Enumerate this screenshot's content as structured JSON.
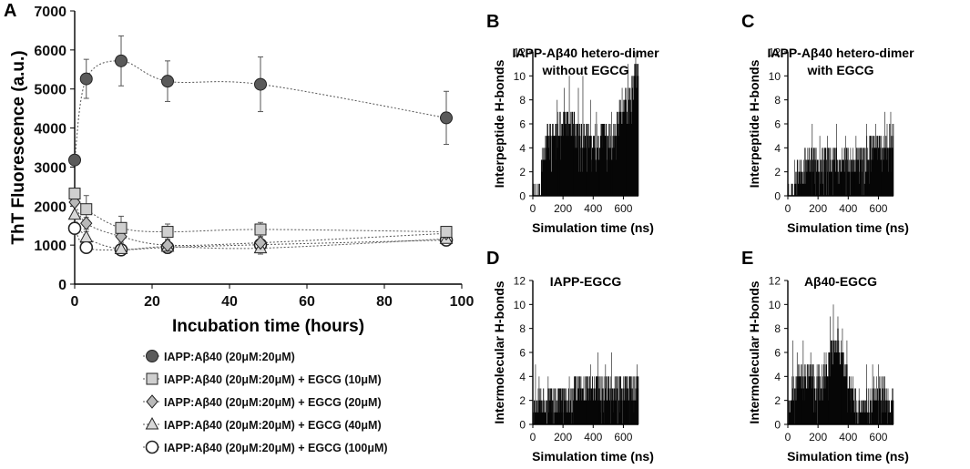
{
  "chart_data": [
    {
      "panel": "A",
      "type": "scatter",
      "title": "",
      "xlabel": "Incubation time (hours)",
      "ylabel": "ThT Fluorescence (a.u.)",
      "xlim": [
        0,
        100
      ],
      "ylim": [
        0,
        7000
      ],
      "xticks": [
        "0",
        "20",
        "40",
        "60",
        "80",
        "100"
      ],
      "yticks": [
        "0",
        "1000",
        "2000",
        "3000",
        "4000",
        "5000",
        "6000",
        "7000"
      ],
      "x": [
        0,
        3,
        12,
        24,
        48,
        96
      ],
      "series": [
        {
          "name": "IAPP:Aβ40 (20μM:20μM)",
          "marker": "circle",
          "color": "#5a5a5a",
          "values": [
            3180,
            5260,
            5720,
            5200,
            5120,
            4260
          ],
          "errors": [
            0,
            500,
            640,
            520,
            700,
            680
          ]
        },
        {
          "name": "IAPP:Aβ40 (20μM:20μM) + EGCG (10μM)",
          "marker": "square",
          "color": "#cfcfcf",
          "values": [
            2320,
            1920,
            1440,
            1340,
            1400,
            1340
          ],
          "errors": [
            0,
            350,
            300,
            200,
            180,
            120
          ]
        },
        {
          "name": "IAPP:Aβ40 (20μM:20μM) + EGCG (20μM)",
          "marker": "diamond",
          "color": "#b9b9b9",
          "values": [
            2100,
            1560,
            1220,
            1000,
            1060,
            1300
          ],
          "errors": [
            0,
            150,
            150,
            150,
            150,
            150
          ]
        },
        {
          "name": "IAPP:Aβ40 (20μM:20μM) + EGCG (40μM)",
          "marker": "triangle",
          "color": "#d8d8d8",
          "values": [
            1780,
            1200,
            900,
            960,
            920,
            1160
          ],
          "errors": [
            0,
            150,
            100,
            150,
            150,
            150
          ]
        },
        {
          "name": "IAPP:Aβ40 (20μM:20μM) + EGCG (100μM)",
          "marker": "circle-open",
          "color": "#ffffff",
          "values": [
            1430,
            940,
            880,
            940,
            1010,
            1130
          ],
          "errors": [
            0,
            100,
            100,
            150,
            150,
            150
          ]
        }
      ]
    },
    {
      "panel": "B",
      "type": "bar",
      "title_lines": [
        "IAPP-Aβ40 hetero-dimer",
        "without EGCG"
      ],
      "xlabel": "Simulation time (ns)",
      "ylabel": "Interpeptide H-bonds",
      "xlim": [
        0,
        700
      ],
      "ylim": [
        0,
        12
      ],
      "xticks": [
        "0",
        "200",
        "400",
        "600"
      ],
      "yticks": [
        "0",
        "2",
        "4",
        "6",
        "8",
        "10",
        "12"
      ],
      "envelope": [
        [
          0,
          0
        ],
        [
          50,
          0
        ],
        [
          55,
          3
        ],
        [
          100,
          5
        ],
        [
          150,
          5
        ],
        [
          200,
          6
        ],
        [
          250,
          6
        ],
        [
          300,
          5
        ],
        [
          350,
          5
        ],
        [
          400,
          4
        ],
        [
          450,
          5
        ],
        [
          500,
          5
        ],
        [
          520,
          4
        ],
        [
          560,
          6
        ],
        [
          600,
          7
        ],
        [
          640,
          8
        ],
        [
          680,
          10
        ],
        [
          700,
          10
        ]
      ],
      "peaks": [
        [
          60,
          4
        ],
        [
          110,
          6
        ],
        [
          160,
          8
        ],
        [
          205,
          9
        ],
        [
          240,
          10
        ],
        [
          262,
          7
        ],
        [
          300,
          9
        ],
        [
          330,
          10
        ],
        [
          380,
          8
        ],
        [
          420,
          7
        ],
        [
          470,
          6
        ],
        [
          520,
          7
        ],
        [
          590,
          9
        ],
        [
          630,
          11
        ],
        [
          660,
          10
        ],
        [
          680,
          12
        ],
        [
          695,
          11
        ]
      ]
    },
    {
      "panel": "C",
      "type": "bar",
      "title_lines": [
        "IAPP-Aβ40 hetero-dimer",
        "with EGCG"
      ],
      "xlabel": "Simulation time (ns)",
      "ylabel": "Interpeptide H-bonds",
      "xlim": [
        0,
        700
      ],
      "ylim": [
        0,
        12
      ],
      "xticks": [
        "0",
        "200",
        "400",
        "600"
      ],
      "yticks": [
        "0",
        "2",
        "4",
        "6",
        "8",
        "10",
        "12"
      ],
      "envelope": [
        [
          0,
          0
        ],
        [
          40,
          0
        ],
        [
          45,
          2
        ],
        [
          100,
          2
        ],
        [
          150,
          3
        ],
        [
          200,
          3
        ],
        [
          250,
          3
        ],
        [
          300,
          3
        ],
        [
          350,
          3
        ],
        [
          400,
          3
        ],
        [
          450,
          3
        ],
        [
          500,
          3
        ],
        [
          550,
          4
        ],
        [
          600,
          4
        ],
        [
          650,
          4
        ],
        [
          700,
          5
        ]
      ],
      "peaks": [
        [
          60,
          3
        ],
        [
          110,
          4
        ],
        [
          160,
          6
        ],
        [
          210,
          5
        ],
        [
          260,
          5
        ],
        [
          320,
          6
        ],
        [
          380,
          5
        ],
        [
          450,
          5
        ],
        [
          520,
          6
        ],
        [
          580,
          6
        ],
        [
          640,
          7
        ],
        [
          680,
          7
        ]
      ]
    },
    {
      "panel": "D",
      "type": "bar",
      "title_lines": [
        "IAPP-EGCG"
      ],
      "xlabel": "Simulation time (ns)",
      "ylabel": "Intermolecular H-bonds",
      "xlim": [
        0,
        700
      ],
      "ylim": [
        0,
        12
      ],
      "xticks": [
        "0",
        "200",
        "400",
        "600"
      ],
      "yticks": [
        "0",
        "2",
        "4",
        "6",
        "8",
        "10",
        "12"
      ],
      "envelope": [
        [
          0,
          2
        ],
        [
          260,
          2
        ],
        [
          270,
          3
        ],
        [
          700,
          3
        ]
      ],
      "peaks": [
        [
          15,
          5
        ],
        [
          40,
          4
        ],
        [
          100,
          4
        ],
        [
          180,
          3
        ],
        [
          240,
          4
        ],
        [
          300,
          4
        ],
        [
          380,
          5
        ],
        [
          430,
          6
        ],
        [
          480,
          5
        ],
        [
          520,
          6
        ],
        [
          560,
          4
        ],
        [
          600,
          4
        ],
        [
          650,
          4
        ],
        [
          690,
          5
        ]
      ]
    },
    {
      "panel": "E",
      "type": "bar",
      "title_lines": [
        "Aβ40-EGCG"
      ],
      "xlabel": "Simulation time (ns)",
      "ylabel": "Intermolecular H-bonds",
      "xlim": [
        0,
        700
      ],
      "ylim": [
        0,
        12
      ],
      "xticks": [
        "0",
        "200",
        "400",
        "600"
      ],
      "yticks": [
        "0",
        "2",
        "4",
        "6",
        "8",
        "10",
        "12"
      ],
      "envelope": [
        [
          0,
          1
        ],
        [
          30,
          3
        ],
        [
          80,
          4
        ],
        [
          150,
          4
        ],
        [
          200,
          3
        ],
        [
          250,
          4
        ],
        [
          290,
          6
        ],
        [
          330,
          7
        ],
        [
          370,
          5
        ],
        [
          400,
          3
        ],
        [
          440,
          2
        ],
        [
          480,
          1
        ],
        [
          520,
          2
        ],
        [
          560,
          2
        ],
        [
          600,
          3
        ],
        [
          640,
          2
        ],
        [
          680,
          2
        ],
        [
          700,
          2
        ]
      ],
      "peaks": [
        [
          30,
          7
        ],
        [
          60,
          6
        ],
        [
          100,
          7
        ],
        [
          150,
          6
        ],
        [
          200,
          5
        ],
        [
          240,
          6
        ],
        [
          280,
          9
        ],
        [
          300,
          10
        ],
        [
          330,
          9
        ],
        [
          360,
          8
        ],
        [
          390,
          7
        ],
        [
          430,
          4
        ],
        [
          470,
          3
        ],
        [
          520,
          5
        ],
        [
          560,
          5
        ],
        [
          600,
          5
        ],
        [
          640,
          4
        ],
        [
          690,
          3
        ]
      ]
    }
  ]
}
